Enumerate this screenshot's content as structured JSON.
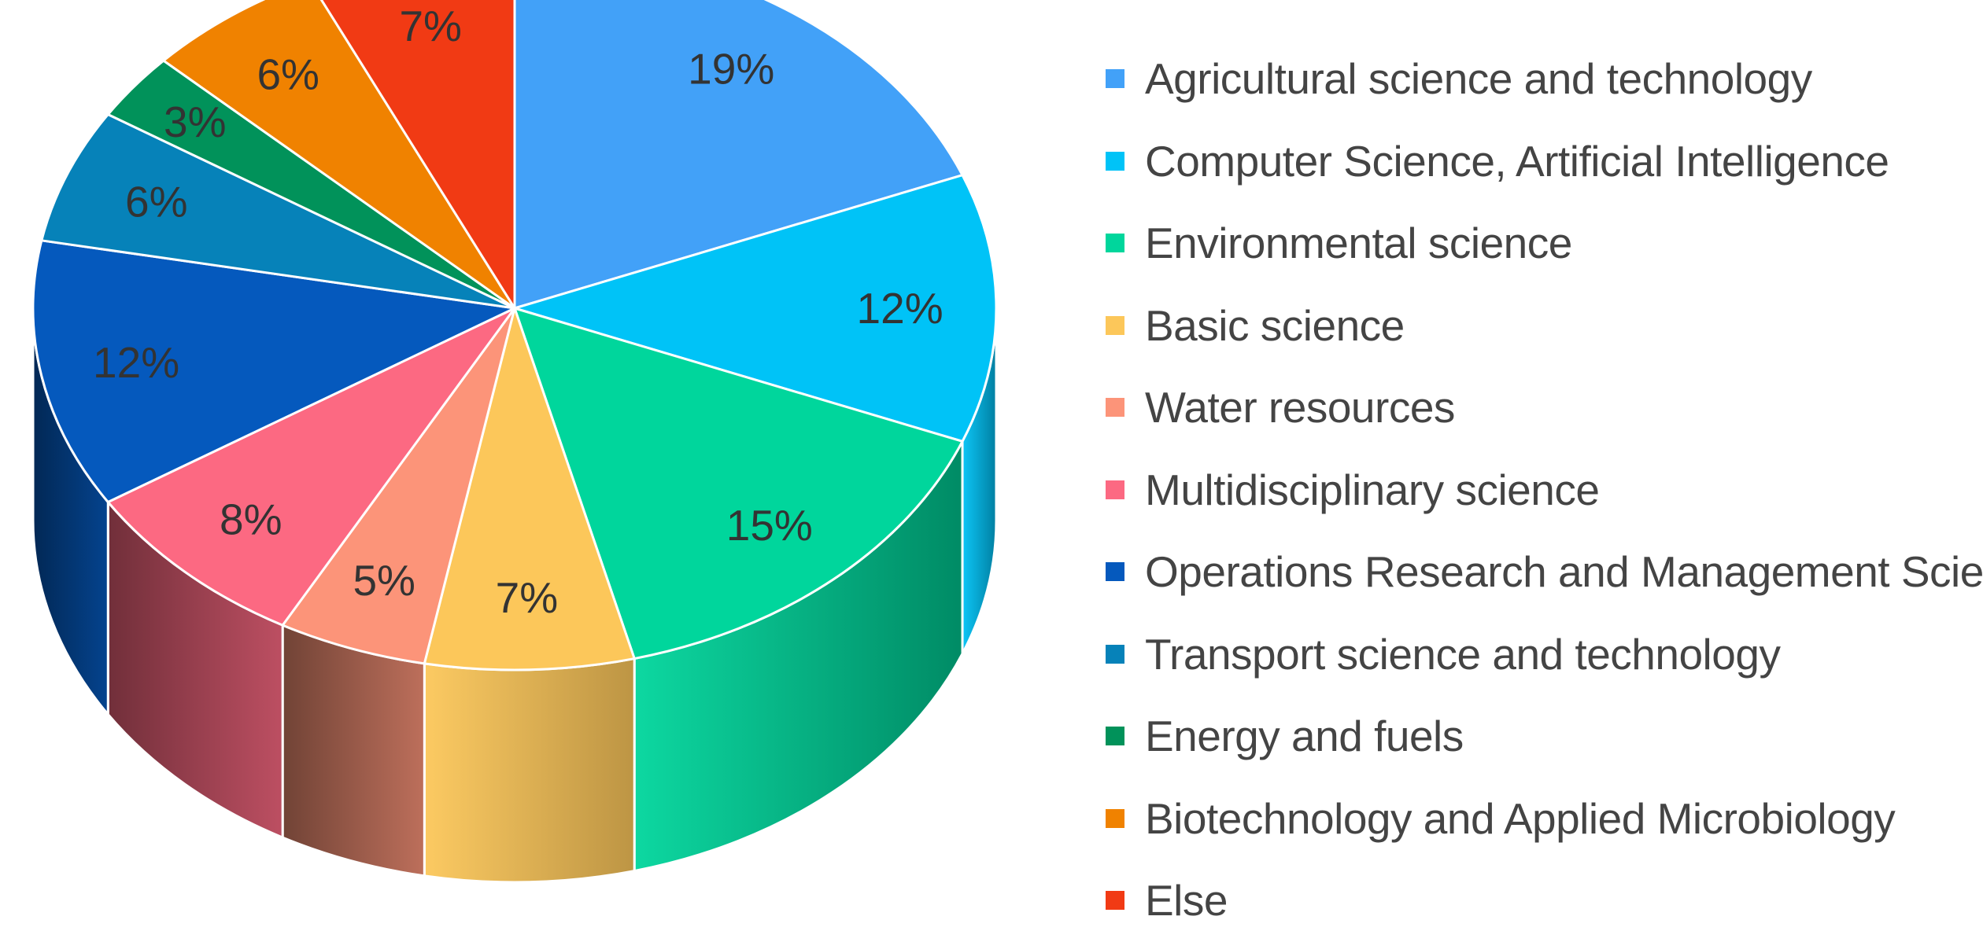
{
  "chart_data": {
    "type": "pie",
    "style": "3d",
    "unit": "%",
    "legend_position": "right",
    "slices": [
      {
        "label": "Agricultural science and technology",
        "value": 19,
        "value_label": "19%",
        "color": "#42A1F8"
      },
      {
        "label": "Computer Science, Artificial Intelligence",
        "value": 12,
        "value_label": "12%",
        "color": "#00C3F7"
      },
      {
        "label": "Environmental science",
        "value": 15,
        "value_label": "15%",
        "color": "#00D69C"
      },
      {
        "label": "Basic science",
        "value": 7,
        "value_label": "7%",
        "color": "#FCC75A"
      },
      {
        "label": "Water resources",
        "value": 5,
        "value_label": "5%",
        "color": "#FC9479"
      },
      {
        "label": "Multidisciplinary science",
        "value": 8,
        "value_label": "8%",
        "color": "#FC6982"
      },
      {
        "label": "Operations Research and Management Science",
        "value": 12,
        "value_label": "12%",
        "color": "#0559BD"
      },
      {
        "label": "Transport science and technology",
        "value": 6,
        "value_label": "6%",
        "color": "#0682B9"
      },
      {
        "label": "Energy and fuels",
        "value": 3,
        "value_label": "3%",
        "color": "#01925A"
      },
      {
        "label": "Biotechnology and Applied Microbiology",
        "value": 6,
        "value_label": "6%",
        "color": "#F08200"
      },
      {
        "label": "Else",
        "value": 7,
        "value_label": "7%",
        "color": "#F13A14"
      }
    ]
  }
}
